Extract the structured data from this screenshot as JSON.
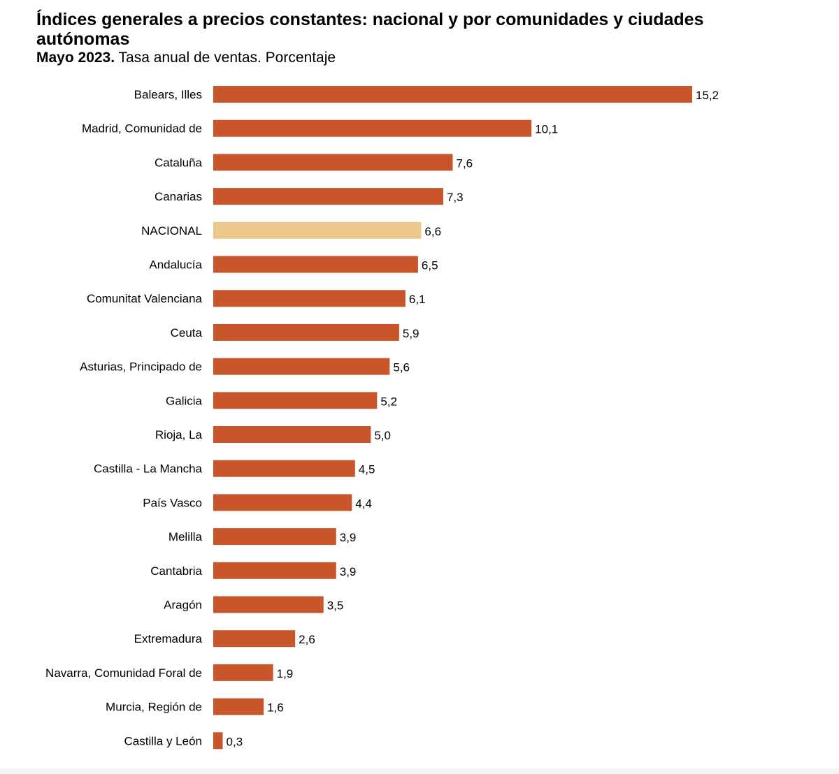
{
  "header": {
    "title": "Índices generales a precios constantes: nacional y por comunidades y ciudades autónomas",
    "subtitle_bold": "Mayo 2023.",
    "subtitle_rest": " Tasa anual de ventas. Porcentaje"
  },
  "colors": {
    "bar": "#c9562a",
    "highlight": "#ecc88d",
    "text": "#000000"
  },
  "chart_data": {
    "type": "bar",
    "orientation": "horizontal",
    "title": "Índices generales a precios constantes: nacional y por comunidades y ciudades autónomas",
    "subtitle": "Mayo 2023. Tasa anual de ventas. Porcentaje",
    "xlabel": "",
    "ylabel": "",
    "xlim": [
      0,
      15.2
    ],
    "grid": false,
    "categories": [
      "Balears, Illes",
      "Madrid, Comunidad de",
      "Cataluña",
      "Canarias",
      "NACIONAL",
      "Andalucía",
      "Comunitat Valenciana",
      "Ceuta",
      "Asturias, Principado de",
      "Galicia",
      "Rioja, La",
      "Castilla - La Mancha",
      "País Vasco",
      "Melilla",
      "Cantabria",
      "Aragón",
      "Extremadura",
      "Navarra, Comunidad Foral de",
      "Murcia, Región de",
      "Castilla y León"
    ],
    "values": [
      15.2,
      10.1,
      7.6,
      7.3,
      6.6,
      6.5,
      6.1,
      5.9,
      5.6,
      5.2,
      5.0,
      4.5,
      4.4,
      3.9,
      3.9,
      3.5,
      2.6,
      1.9,
      1.6,
      0.3
    ],
    "value_labels": [
      "15,2",
      "10,1",
      "7,6",
      "7,3",
      "6,6",
      "6,5",
      "6,1",
      "5,9",
      "5,6",
      "5,2",
      "5,0",
      "4,5",
      "4,4",
      "3,9",
      "3,9",
      "3,5",
      "2,6",
      "1,9",
      "1,6",
      "0,3"
    ],
    "highlight": "NACIONAL"
  }
}
